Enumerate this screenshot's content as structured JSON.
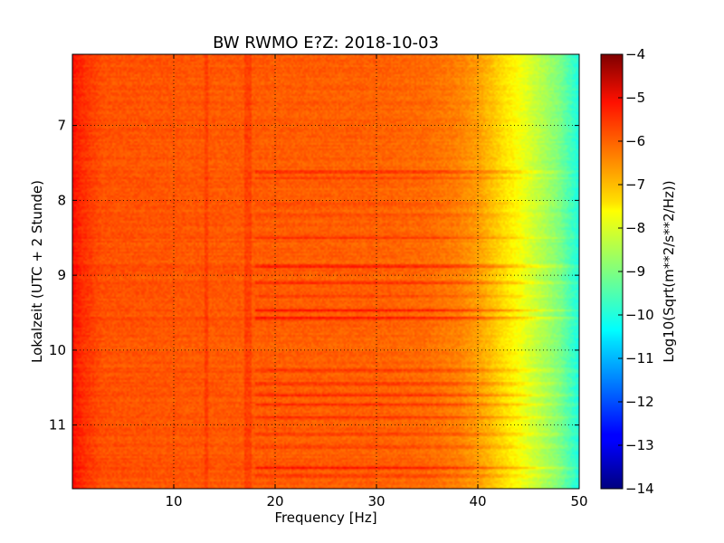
{
  "chart_data": {
    "type": "heatmap",
    "title": "BW RWMO E?Z: 2018-10-03",
    "xlabel": "Frequency [Hz]",
    "ylabel": "Lokalzeit (UTC + 2 Stunde)",
    "xlim": [
      0,
      50
    ],
    "ylim": [
      11.85,
      6.05
    ],
    "xticks": [
      10,
      20,
      30,
      40,
      50
    ],
    "yticks": [
      7,
      8,
      9,
      10,
      11
    ],
    "grid": true,
    "colormap": "jet",
    "colorbar": {
      "label": "Log10(Sqrt(m**2/s**2/Hz))",
      "min": -14,
      "max": -4,
      "ticks": [
        -4,
        -5,
        -6,
        -7,
        -8,
        -9,
        -10,
        -11,
        -12,
        -13,
        -14
      ]
    },
    "frequency_profile": {
      "x": [
        0,
        1,
        3,
        10,
        20,
        30,
        35,
        38,
        40,
        42,
        44,
        46,
        48,
        50
      ],
      "value": [
        -5.4,
        -5.7,
        -6.05,
        -6.1,
        -6.15,
        -6.2,
        -6.3,
        -6.5,
        -6.8,
        -7.3,
        -7.8,
        -8.4,
        -9.0,
        -10.0
      ]
    },
    "dark_bands": [
      {
        "time": 7.62,
        "strength": 0.9
      },
      {
        "time": 7.7,
        "strength": 0.4
      },
      {
        "time": 8.05,
        "strength": 0.35
      },
      {
        "time": 8.2,
        "strength": 0.35
      },
      {
        "time": 8.5,
        "strength": 0.55
      },
      {
        "time": 8.88,
        "strength": 1.0
      },
      {
        "time": 9.1,
        "strength": 0.75
      },
      {
        "time": 9.28,
        "strength": 0.5
      },
      {
        "time": 9.47,
        "strength": 0.95
      },
      {
        "time": 9.57,
        "strength": 1.0
      },
      {
        "time": 10.27,
        "strength": 0.55
      },
      {
        "time": 10.45,
        "strength": 0.7
      },
      {
        "time": 10.6,
        "strength": 0.75
      },
      {
        "time": 10.73,
        "strength": 0.8
      },
      {
        "time": 10.9,
        "strength": 0.65
      },
      {
        "time": 11.12,
        "strength": 0.55
      },
      {
        "time": 11.3,
        "strength": 0.5
      },
      {
        "time": 11.57,
        "strength": 0.9
      },
      {
        "time": 11.68,
        "strength": 0.55
      }
    ]
  }
}
